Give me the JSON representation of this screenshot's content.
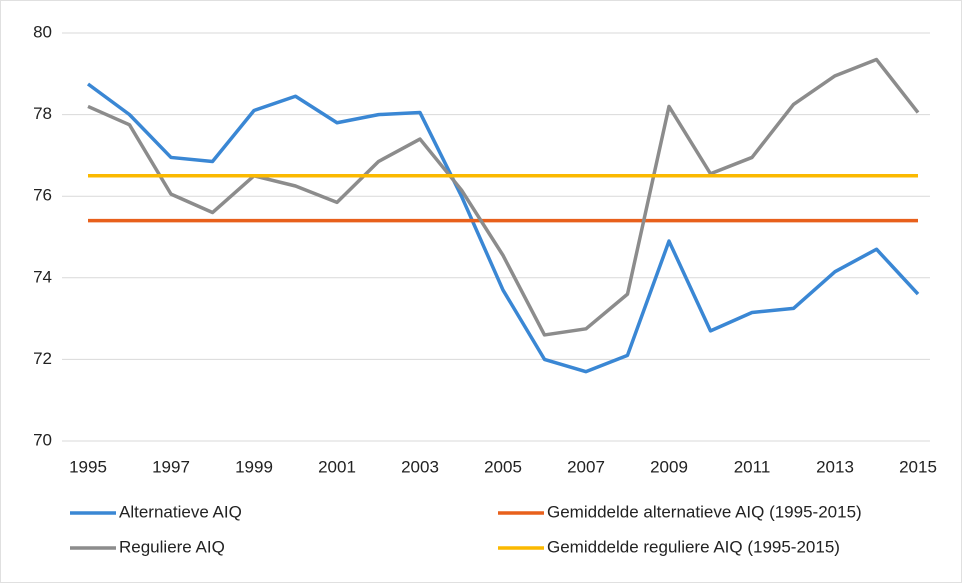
{
  "chart_data": {
    "type": "line",
    "x": [
      1995,
      1996,
      1997,
      1998,
      1999,
      2000,
      2001,
      2002,
      2003,
      2004,
      2005,
      2006,
      2007,
      2008,
      2009,
      2010,
      2011,
      2012,
      2013,
      2014,
      2015
    ],
    "xlim": [
      1995,
      2015
    ],
    "xticks": [
      1995,
      1997,
      1999,
      2001,
      2003,
      2005,
      2007,
      2009,
      2011,
      2013,
      2015
    ],
    "ylim": [
      70,
      80
    ],
    "yticks": [
      70,
      72,
      74,
      76,
      78,
      80
    ],
    "grid": true,
    "legend": "bottom",
    "series": [
      {
        "name": "Alternatieve AIQ",
        "color": "#3a87d4",
        "values": [
          78.75,
          78.0,
          76.95,
          76.85,
          78.1,
          78.45,
          77.8,
          78.0,
          78.05,
          76.0,
          73.7,
          72.0,
          71.7,
          72.1,
          74.9,
          72.7,
          73.15,
          73.25,
          74.15,
          74.7,
          73.6
        ]
      },
      {
        "name": "Gemiddelde alternatieve AIQ (1995-2015)",
        "color": "#e8601c",
        "values": [
          75.4,
          75.4,
          75.4,
          75.4,
          75.4,
          75.4,
          75.4,
          75.4,
          75.4,
          75.4,
          75.4,
          75.4,
          75.4,
          75.4,
          75.4,
          75.4,
          75.4,
          75.4,
          75.4,
          75.4,
          75.4
        ]
      },
      {
        "name": "Reguliere AIQ",
        "color": "#8c8c8c",
        "values": [
          78.2,
          77.75,
          76.05,
          75.6,
          76.5,
          76.25,
          75.85,
          76.85,
          77.4,
          76.15,
          74.55,
          72.6,
          72.75,
          73.6,
          78.2,
          76.55,
          76.95,
          78.25,
          78.95,
          79.35,
          78.05
        ]
      },
      {
        "name": "Gemiddelde reguliere AIQ (1995-2015)",
        "color": "#fbb900",
        "values": [
          76.5,
          76.5,
          76.5,
          76.5,
          76.5,
          76.5,
          76.5,
          76.5,
          76.5,
          76.5,
          76.5,
          76.5,
          76.5,
          76.5,
          76.5,
          76.5,
          76.5,
          76.5,
          76.5,
          76.5,
          76.5
        ]
      }
    ]
  }
}
